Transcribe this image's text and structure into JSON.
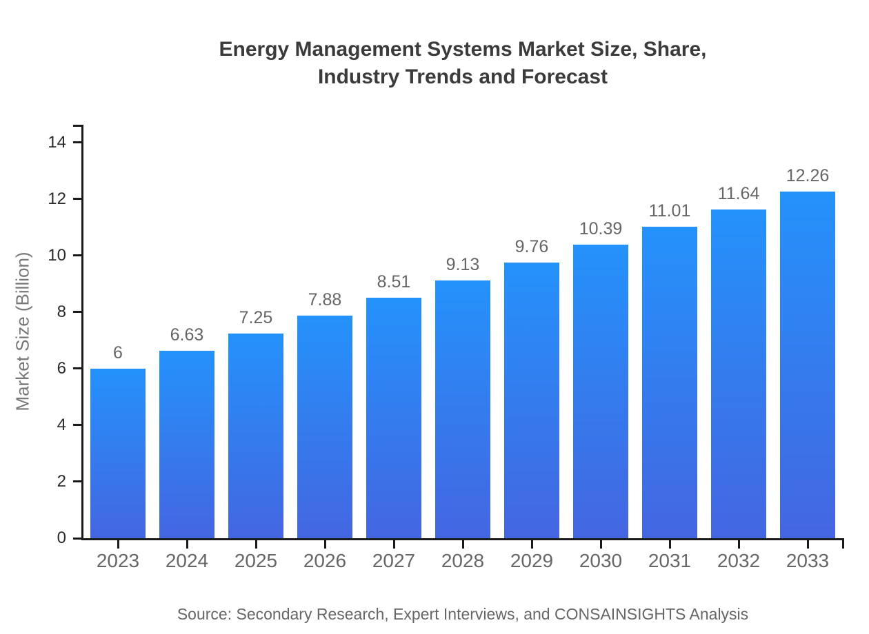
{
  "chart_data": {
    "type": "bar",
    "title": "Energy Management Systems Market Size, Share, Industry Trends and Forecast",
    "title_lines": [
      "Energy Management Systems Market Size, Share,",
      "Industry Trends and Forecast"
    ],
    "categories": [
      "2023",
      "2024",
      "2025",
      "2026",
      "2027",
      "2028",
      "2029",
      "2030",
      "2031",
      "2032",
      "2033"
    ],
    "values": [
      6,
      6.63,
      7.25,
      7.88,
      8.51,
      9.13,
      9.76,
      10.39,
      11.01,
      11.64,
      12.26
    ],
    "value_labels": [
      "6",
      "6.63",
      "7.25",
      "7.88",
      "8.51",
      "9.13",
      "9.76",
      "10.39",
      "11.01",
      "11.64",
      "12.26"
    ],
    "xlabel": "",
    "ylabel": "Market Size (Billion)",
    "yticks": [
      0,
      2,
      4,
      6,
      8,
      10,
      12,
      14
    ],
    "ylim": [
      0,
      14.63
    ],
    "grid": false,
    "legend": "none",
    "source": "Source: Secondary Research, Expert Interviews, and CONSAINSIGHTS Analysis",
    "colors": {
      "bar_top": "#2492fb",
      "bar_bottom": "#4466e1",
      "axis": "#1a1a1a",
      "title": "#3b3b3b",
      "y_tick_label": "#2b2b2b",
      "x_tick_label": "#666666",
      "value_label": "#666666",
      "y_axis_label": "#777777",
      "source": "#666666"
    }
  }
}
